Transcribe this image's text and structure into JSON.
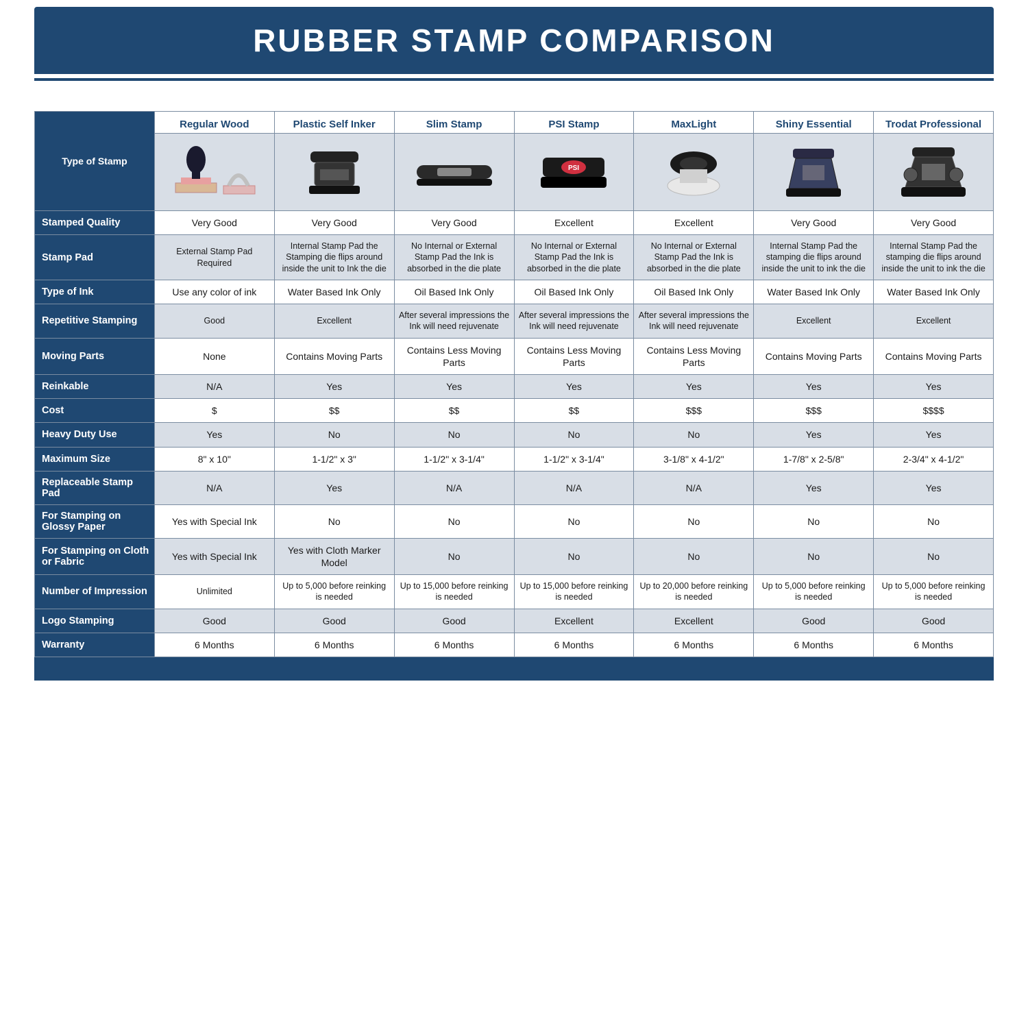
{
  "title": "RUBBER STAMP COMPARISON",
  "colors": {
    "navy": "#1f4872",
    "row_shade": "#d8dee6",
    "row_white": "#ffffff",
    "border": "#7a8ca1"
  },
  "columns": [
    {
      "key": "regular_wood",
      "label": "Regular Wood"
    },
    {
      "key": "plastic_self_inker",
      "label": "Plastic Self Inker"
    },
    {
      "key": "slim_stamp",
      "label": "Slim Stamp"
    },
    {
      "key": "psi_stamp",
      "label": "PSI Stamp"
    },
    {
      "key": "maxlight",
      "label": "MaxLight"
    },
    {
      "key": "shiny_essential",
      "label": "Shiny Essential"
    },
    {
      "key": "trodat_professional",
      "label": "Trodat Professional"
    }
  ],
  "row_labels": {
    "type_of_stamp": "Type of Stamp",
    "stamped_quality": "Stamped Quality",
    "stamp_pad": "Stamp Pad",
    "type_of_ink": "Type of Ink",
    "repetitive": "Repetitive Stamping",
    "moving_parts": "Moving Parts",
    "reinkable": "Reinkable",
    "cost": "Cost",
    "heavy_duty": "Heavy Duty Use",
    "max_size": "Maximum Size",
    "replace_pad": "Replaceable Stamp Pad",
    "glossy": "For Stamping on Glossy Paper",
    "fabric": "For Stamping on Cloth or Fabric",
    "impressions": "Number of Impression",
    "logo": "Logo Stamping",
    "warranty": "Warranty"
  },
  "rows": {
    "stamped_quality": [
      "Very Good",
      "Very Good",
      "Very Good",
      "Excellent",
      "Excellent",
      "Very Good",
      "Very Good"
    ],
    "stamp_pad": [
      "External Stamp Pad Required",
      "Internal Stamp Pad the Stamping die flips around inside the unit to Ink the die",
      "No Internal or External Stamp Pad the Ink is absorbed in the die plate",
      "No Internal or External Stamp Pad the Ink is absorbed in the die plate",
      "No Internal or External Stamp Pad the Ink is absorbed in the die plate",
      "Internal Stamp Pad the stamping die flips around inside the unit to ink the die",
      "Internal Stamp Pad the stamping die flips around inside the unit to ink the die"
    ],
    "type_of_ink": [
      "Use any color of ink",
      "Water Based Ink Only",
      "Oil Based Ink Only",
      "Oil Based Ink Only",
      "Oil Based Ink Only",
      "Water Based Ink Only",
      "Water Based Ink Only"
    ],
    "repetitive": [
      "Good",
      "Excellent",
      "After several impressions the Ink will need rejuvenate",
      "After several impressions the Ink will need rejuvenate",
      "After several impressions the Ink will need rejuvenate",
      "Excellent",
      "Excellent"
    ],
    "moving_parts": [
      "None",
      "Contains Moving Parts",
      "Contains Less Moving Parts",
      "Contains Less Moving Parts",
      "Contains Less Moving Parts",
      "Contains Moving Parts",
      "Contains Moving Parts"
    ],
    "reinkable": [
      "N/A",
      "Yes",
      "Yes",
      "Yes",
      "Yes",
      "Yes",
      "Yes"
    ],
    "cost": [
      "$",
      "$$",
      "$$",
      "$$",
      "$$$",
      "$$$",
      "$$$$"
    ],
    "heavy_duty": [
      "Yes",
      "No",
      "No",
      "No",
      "No",
      "Yes",
      "Yes"
    ],
    "max_size": [
      "8\" x 10\"",
      "1-1/2\" x 3\"",
      "1-1/2\" x 3-1/4\"",
      "1-1/2\" x 3-1/4\"",
      "3-1/8\" x 4-1/2\"",
      "1-7/8\" x 2-5/8\"",
      "2-3/4\" x 4-1/2\""
    ],
    "replace_pad": [
      "N/A",
      "Yes",
      "N/A",
      "N/A",
      "N/A",
      "Yes",
      "Yes"
    ],
    "glossy": [
      "Yes with Special Ink",
      "No",
      "No",
      "No",
      "No",
      "No",
      "No"
    ],
    "fabric": [
      "Yes with Special Ink",
      "Yes with Cloth Marker Model",
      "No",
      "No",
      "No",
      "No",
      "No"
    ],
    "impressions": [
      "Unlimited",
      "Up to 5,000 before reinking is needed",
      "Up to 15,000 before reinking is needed",
      "Up to 15,000 before reinking is needed",
      "Up to 20,000 before reinking is needed",
      "Up to 5,000 before reinking is needed",
      "Up to 5,000 before reinking is needed"
    ],
    "logo": [
      "Good",
      "Good",
      "Good",
      "Excellent",
      "Excellent",
      "Good",
      "Good"
    ],
    "warranty": [
      "6 Months",
      "6 Months",
      "6 Months",
      "6 Months",
      "6 Months",
      "6 Months",
      "6 Months"
    ]
  },
  "row_order": [
    {
      "key": "stamped_quality",
      "shade": false
    },
    {
      "key": "stamp_pad",
      "shade": true,
      "small": true
    },
    {
      "key": "type_of_ink",
      "shade": false
    },
    {
      "key": "repetitive",
      "shade": true,
      "small": true
    },
    {
      "key": "moving_parts",
      "shade": false
    },
    {
      "key": "reinkable",
      "shade": true
    },
    {
      "key": "cost",
      "shade": false
    },
    {
      "key": "heavy_duty",
      "shade": true
    },
    {
      "key": "max_size",
      "shade": false
    },
    {
      "key": "replace_pad",
      "shade": true
    },
    {
      "key": "glossy",
      "shade": false
    },
    {
      "key": "fabric",
      "shade": true
    },
    {
      "key": "impressions",
      "shade": false,
      "small": true
    },
    {
      "key": "logo",
      "shade": true
    },
    {
      "key": "warranty",
      "shade": false
    }
  ]
}
